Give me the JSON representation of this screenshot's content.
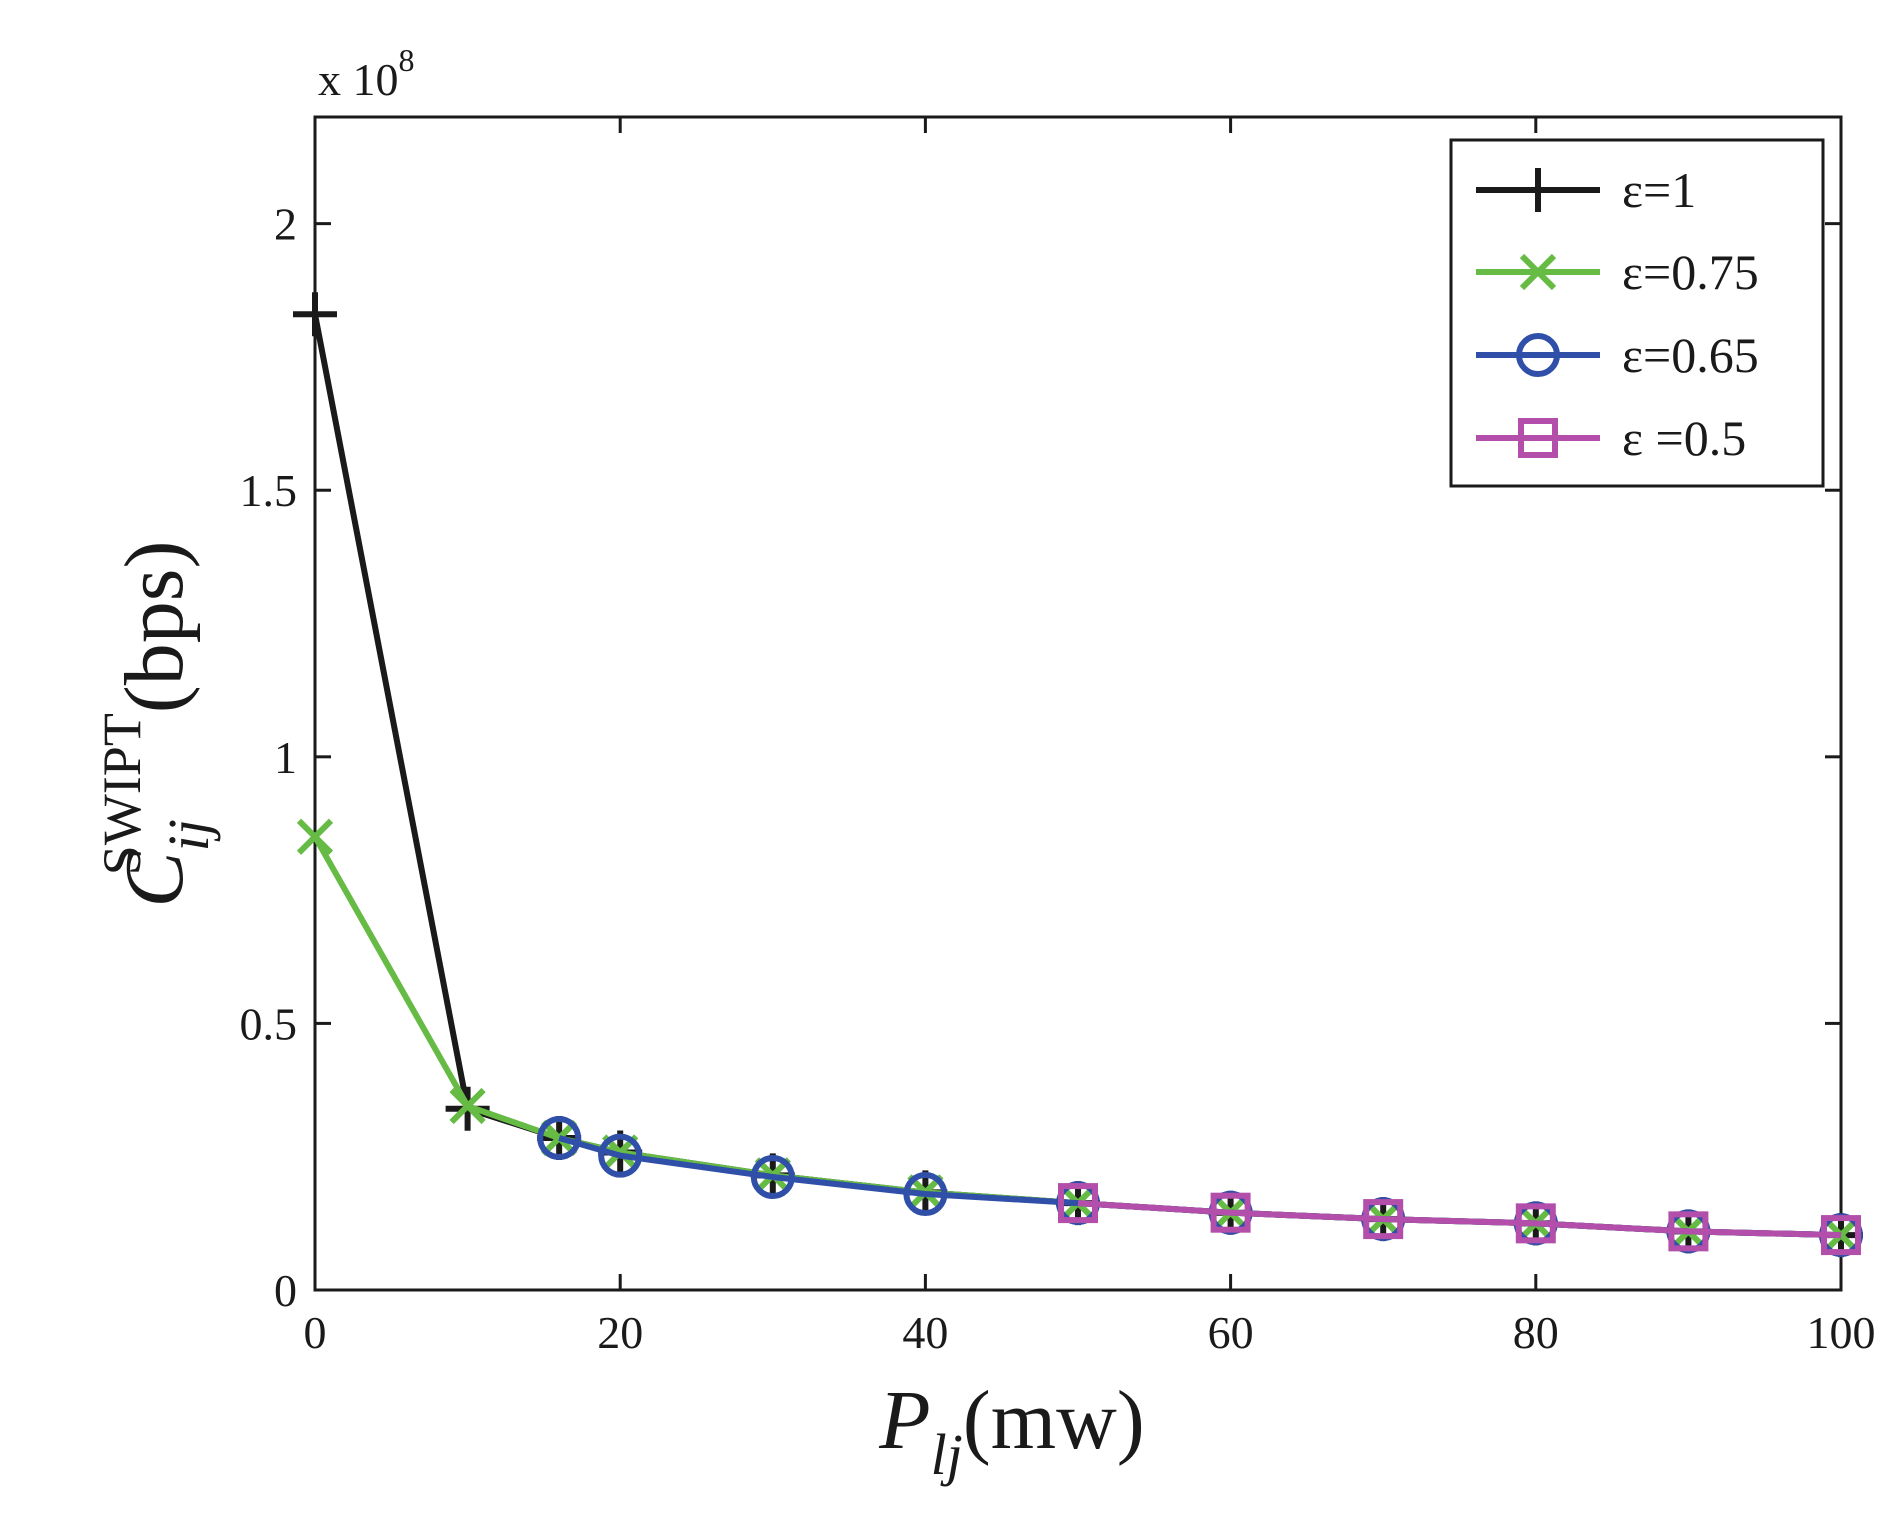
{
  "chart_data": {
    "type": "line",
    "title": "",
    "exponent": {
      "prefix": "x 10",
      "power": "8"
    },
    "xlabel": {
      "main": "P",
      "sub": "lj",
      "unit": "(mw)"
    },
    "ylabel": {
      "main": "C",
      "sub": "ij",
      "sup": "SWIPT",
      "unit": "(bps)"
    },
    "xlim": [
      0,
      100
    ],
    "ylim": [
      0,
      2.2
    ],
    "xticks": [
      0,
      20,
      40,
      60,
      80,
      100
    ],
    "xtick_labels": [
      "0",
      "20",
      "40",
      "60",
      "80",
      "100"
    ],
    "yticks": [
      0,
      0.5,
      1,
      1.5,
      2
    ],
    "ytick_labels": [
      "0",
      "0.5",
      "1",
      "1.5",
      "2"
    ],
    "grid": false,
    "legend_position": "top-right",
    "series": [
      {
        "name": "ε=1",
        "color": "#1a1a1a",
        "marker": "plus",
        "x": [
          0,
          10,
          16,
          20,
          30,
          40,
          50,
          60,
          70,
          80,
          90,
          100
        ],
        "y": [
          1.83,
          0.34,
          0.285,
          0.258,
          0.215,
          0.183,
          0.163,
          0.145,
          0.133,
          0.125,
          0.11,
          0.103
        ]
      },
      {
        "name": "ε=0.75",
        "color": "#66bb44",
        "marker": "x",
        "x": [
          0,
          10,
          16,
          20,
          30,
          40,
          50,
          60,
          70,
          80,
          90,
          100
        ],
        "y": [
          0.85,
          0.345,
          0.285,
          0.258,
          0.215,
          0.183,
          0.163,
          0.145,
          0.133,
          0.125,
          0.11,
          0.103
        ]
      },
      {
        "name": "ε=0.65",
        "color": "#2f4fa8",
        "marker": "circle",
        "x": [
          16,
          20,
          30,
          40,
          50,
          60,
          70,
          80,
          90,
          100
        ],
        "y": [
          0.285,
          0.252,
          0.212,
          0.18,
          0.163,
          0.145,
          0.133,
          0.125,
          0.11,
          0.103
        ]
      },
      {
        "name": "ε =0.5",
        "color": "#b34faa",
        "marker": "square",
        "x": [
          50,
          60,
          70,
          80,
          90,
          100
        ],
        "y": [
          0.163,
          0.145,
          0.133,
          0.125,
          0.11,
          0.103
        ]
      }
    ]
  }
}
